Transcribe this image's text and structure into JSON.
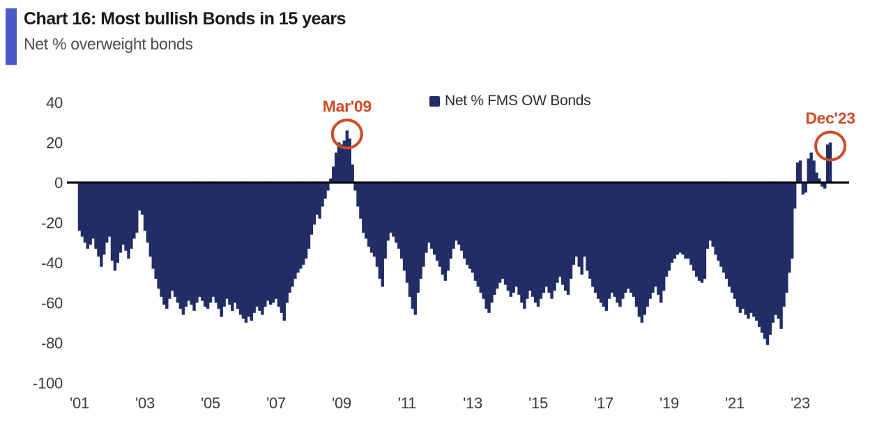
{
  "header": {
    "title": "Chart 16: Most bullish Bonds in 15 years",
    "subtitle": "Net % overweight bonds"
  },
  "legend": {
    "label": "Net % FMS OW Bonds"
  },
  "colors": {
    "bar": "#222d66",
    "accent_bar": "#4a5ac8",
    "annotation": "#d04a28",
    "axis_text": "#3a3a3a",
    "zero_line": "#0a0a12"
  },
  "chart_data": {
    "type": "bar",
    "title": "Chart 16: Most bullish Bonds in 15 years",
    "subtitle": "Net % overweight bonds",
    "series_name": "Net % FMS OW Bonds",
    "x_unit": "month",
    "start_month": "2001-01",
    "end_month": "2023-12",
    "ylim": [
      -100,
      40
    ],
    "y_ticks": [
      40,
      20,
      0,
      -20,
      -40,
      -60,
      -80,
      -100
    ],
    "x_tick_years": [
      2001,
      2003,
      2005,
      2007,
      2009,
      2011,
      2013,
      2015,
      2017,
      2019,
      2021,
      2023
    ],
    "x_tick_labels": [
      "'01",
      "'03",
      "'05",
      "'07",
      "'09",
      "'11",
      "'13",
      "'15",
      "'17",
      "'19",
      "'21",
      "'23"
    ],
    "grid": false,
    "legend_position": "top",
    "years": [
      {
        "year": 2001,
        "values": [
          -24,
          -27,
          -30,
          -33,
          -31,
          -28,
          -33,
          -37,
          -42,
          -36,
          -30,
          -27
        ]
      },
      {
        "year": 2002,
        "values": [
          -39,
          -44,
          -40,
          -35,
          -31,
          -34,
          -38,
          -33,
          -28,
          -25,
          -14,
          -16
        ]
      },
      {
        "year": 2003,
        "values": [
          -24,
          -30,
          -37,
          -43,
          -48,
          -53,
          -57,
          -61,
          -63,
          -58,
          -54,
          -57
        ]
      },
      {
        "year": 2004,
        "values": [
          -60,
          -63,
          -66,
          -62,
          -59,
          -61,
          -64,
          -60,
          -57,
          -59,
          -62,
          -63
        ]
      },
      {
        "year": 2005,
        "values": [
          -60,
          -57,
          -60,
          -63,
          -67,
          -62,
          -58,
          -61,
          -64,
          -60,
          -63,
          -66
        ]
      },
      {
        "year": 2006,
        "values": [
          -68,
          -70,
          -67,
          -69,
          -65,
          -62,
          -64,
          -66,
          -62,
          -59,
          -61,
          -60
        ]
      },
      {
        "year": 2007,
        "values": [
          -58,
          -62,
          -65,
          -69,
          -60,
          -55,
          -52,
          -48,
          -45,
          -43,
          -41,
          -38
        ]
      },
      {
        "year": 2008,
        "values": [
          -33,
          -26,
          -21,
          -16,
          -18,
          -12,
          -8,
          -4,
          2,
          8,
          15,
          20
        ]
      },
      {
        "year": 2009,
        "values": [
          19,
          21,
          26,
          22,
          9,
          -4,
          -12,
          -18,
          -25,
          -28,
          -32,
          -35
        ]
      },
      {
        "year": 2010,
        "values": [
          -37,
          -42,
          -48,
          -52,
          -38,
          -29,
          -25,
          -27,
          -30,
          -33,
          -38,
          -44
        ]
      },
      {
        "year": 2011,
        "values": [
          -50,
          -57,
          -63,
          -66,
          -55,
          -48,
          -42,
          -35,
          -30,
          -33,
          -36,
          -39
        ]
      },
      {
        "year": 2012,
        "values": [
          -42,
          -46,
          -49,
          -44,
          -38,
          -33,
          -29,
          -31,
          -34,
          -38,
          -41,
          -43
        ]
      },
      {
        "year": 2013,
        "values": [
          -45,
          -49,
          -52,
          -55,
          -58,
          -63,
          -65,
          -60,
          -56,
          -53,
          -50,
          -48
        ]
      },
      {
        "year": 2014,
        "values": [
          -51,
          -54,
          -57,
          -55,
          -52,
          -56,
          -60,
          -63,
          -58,
          -54,
          -57,
          -60
        ]
      },
      {
        "year": 2015,
        "values": [
          -62,
          -58,
          -55,
          -52,
          -55,
          -58,
          -54,
          -50,
          -47,
          -51,
          -54,
          -56
        ]
      },
      {
        "year": 2016,
        "values": [
          -48,
          -41,
          -37,
          -42,
          -46,
          -37,
          -44,
          -48,
          -52,
          -55,
          -58,
          -60
        ]
      },
      {
        "year": 2017,
        "values": [
          -62,
          -64,
          -58,
          -55,
          -57,
          -60,
          -62,
          -58,
          -55,
          -53,
          -55,
          -57
        ]
      },
      {
        "year": 2018,
        "values": [
          -62,
          -67,
          -70,
          -66,
          -62,
          -58,
          -55,
          -52,
          -56,
          -60,
          -54,
          -47
        ]
      },
      {
        "year": 2019,
        "values": [
          -44,
          -40,
          -38,
          -36,
          -35,
          -36,
          -38,
          -38,
          -41,
          -44,
          -47,
          -49
        ]
      },
      {
        "year": 2020,
        "values": [
          -50,
          -48,
          -33,
          -29,
          -32,
          -36,
          -39,
          -42,
          -45,
          -48,
          -52,
          -55
        ]
      },
      {
        "year": 2021,
        "values": [
          -58,
          -62,
          -65,
          -63,
          -66,
          -68,
          -65,
          -67,
          -69,
          -72,
          -75,
          -78
        ]
      },
      {
        "year": 2022,
        "values": [
          -81,
          -76,
          -70,
          -66,
          -68,
          -73,
          -62,
          -55,
          -45,
          -38,
          -13,
          10
        ]
      },
      {
        "year": 2023,
        "values": [
          11,
          -6,
          -5,
          12,
          15,
          11,
          5,
          2,
          -2,
          -3,
          19,
          20
        ]
      }
    ],
    "annotations": [
      {
        "label": "Mar'09",
        "month": "2009-03",
        "value": 26
      },
      {
        "label": "Dec'23",
        "month": "2023-12",
        "value": 20
      }
    ]
  }
}
